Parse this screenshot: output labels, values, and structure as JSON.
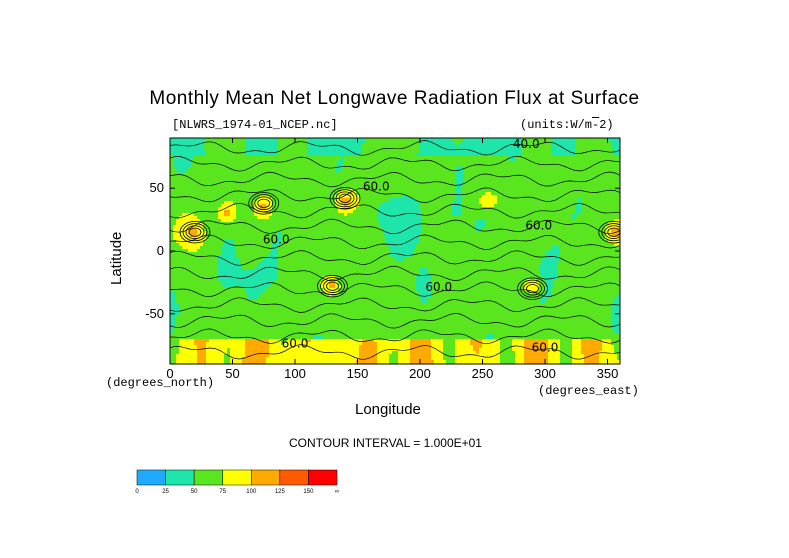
{
  "title": "Monthly Mean Net Longwave Radiation Flux at Surface",
  "file_label": "[NLWRS_1974-01_NCEP.nc]",
  "units_label": "(units:W/m^2)",
  "x_unit_label": "(degrees_east)",
  "y_unit_label": "(degrees_north)",
  "contour_interval": "CONTOUR INTERVAL = 1.000E+01",
  "chart_data": {
    "type": "heatmap",
    "title": "Monthly Mean Net Longwave Radiation Flux at Surface",
    "xlabel": "Longitude",
    "ylabel": "Latitude",
    "xlim": [
      0,
      360
    ],
    "ylim": [
      -90,
      90
    ],
    "xticks": [
      0,
      50,
      100,
      150,
      200,
      250,
      300,
      350
    ],
    "yticks": [
      50,
      0,
      -50
    ],
    "contour_labels": [
      {
        "text": "40.0",
        "lon": 285,
        "lat": 82
      },
      {
        "text": "60.0",
        "lon": 165,
        "lat": 48
      },
      {
        "text": "60.0",
        "lon": 85,
        "lat": 6
      },
      {
        "text": "60.0",
        "lon": 295,
        "lat": 17
      },
      {
        "text": "60.0",
        "lon": 215,
        "lat": -32
      },
      {
        "text": "60.0",
        "lon": 100,
        "lat": -77
      },
      {
        "text": "60.0",
        "lon": 300,
        "lat": -80
      }
    ],
    "colorbar": {
      "levels": [
        "0",
        "25",
        "50",
        "75",
        "100",
        "125",
        "150",
        "∞"
      ],
      "colors": [
        "#1eaaff",
        "#1ee6aa",
        "#5ae61e",
        "#ffff00",
        "#ffaa00",
        "#ff5a00",
        "#ff0000"
      ]
    }
  }
}
